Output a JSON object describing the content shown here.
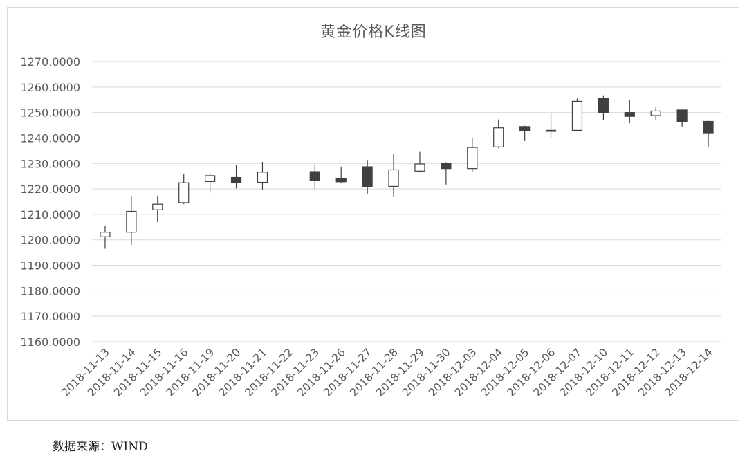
{
  "chart_data": {
    "type": "candlestick",
    "title": "黄金价格K线图",
    "xlabel": "",
    "ylabel": "",
    "ylim": [
      1160,
      1270
    ],
    "ytick_step": 10,
    "ytick_labels": [
      "1160.0000",
      "1170.0000",
      "1180.0000",
      "1190.0000",
      "1200.0000",
      "1210.0000",
      "1220.0000",
      "1230.0000",
      "1240.0000",
      "1250.0000",
      "1260.0000",
      "1270.0000"
    ],
    "grid": true,
    "colors": {
      "up": "#ffffff",
      "down": "#404040",
      "stroke": "#404040",
      "grid": "#d9d9d9",
      "axis_text": "#595959"
    },
    "categories": [
      "2018-11-13",
      "2018-11-14",
      "2018-11-15",
      "2018-11-16",
      "2018-11-19",
      "2018-11-20",
      "2018-11-21",
      "2018-11-22",
      "2018-11-23",
      "2018-11-26",
      "2018-11-27",
      "2018-11-28",
      "2018-11-29",
      "2018-11-30",
      "2018-12-03",
      "2018-12-04",
      "2018-12-05",
      "2018-12-06",
      "2018-12-07",
      "2018-12-10",
      "2018-12-11",
      "2018-12-12",
      "2018-12-13",
      "2018-12-14"
    ],
    "open": [
      1201.2,
      1203.0,
      1211.8,
      1214.6,
      1222.9,
      1224.5,
      1222.6,
      null,
      1226.8,
      1224.0,
      1228.7,
      1221.0,
      1227.0,
      1230.0,
      1228.0,
      1236.5,
      1244.5,
      1243.0,
      1243.0,
      1255.5,
      1250.0,
      1248.8,
      1251.0,
      1246.5
    ],
    "high": [
      1205.6,
      1217.0,
      1217.0,
      1226.0,
      1226.3,
      1229.3,
      1230.6,
      null,
      1229.6,
      1228.8,
      1231.4,
      1233.8,
      1234.8,
      1230.5,
      1240.0,
      1247.3,
      1244.8,
      1249.8,
      1255.5,
      1256.5,
      1254.8,
      1252.3,
      1251.2,
      1246.8
    ],
    "low": [
      1196.5,
      1198.0,
      1207.0,
      1214.0,
      1218.5,
      1220.2,
      1219.8,
      null,
      1220.0,
      1222.2,
      1218.0,
      1216.8,
      1226.5,
      1221.7,
      1226.8,
      1236.0,
      1238.8,
      1240.0,
      1242.8,
      1247.0,
      1245.8,
      1247.0,
      1244.5,
      1236.5
    ],
    "close": [
      1203.0,
      1211.2,
      1214.0,
      1222.4,
      1225.2,
      1222.4,
      1226.6,
      null,
      1223.3,
      1222.8,
      1220.8,
      1227.5,
      1229.8,
      1228.0,
      1236.3,
      1244.0,
      1242.9,
      1243.0,
      1254.4,
      1249.8,
      1248.5,
      1250.6,
      1246.3,
      1242.0
    ]
  },
  "source_note": "数据来源：WIND"
}
